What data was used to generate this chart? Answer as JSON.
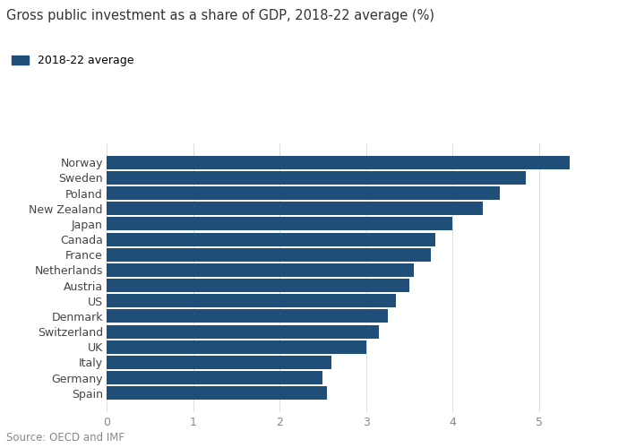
{
  "title": "Gross public investment as a share of GDP, 2018-22 average (%)",
  "legend_label": "2018-22 average",
  "source": "Source: OECD and IMF",
  "bar_color": "#1F4E79",
  "categories": [
    "Spain",
    "Germany",
    "Italy",
    "UK",
    "Switzerland",
    "Denmark",
    "US",
    "Austria",
    "Netherlands",
    "France",
    "Canada",
    "Japan",
    "New Zealand",
    "Poland",
    "Sweden",
    "Norway"
  ],
  "values": [
    2.55,
    2.5,
    2.6,
    3.0,
    3.15,
    3.25,
    3.35,
    3.5,
    3.55,
    3.75,
    3.8,
    4.0,
    4.35,
    4.55,
    4.85,
    5.35
  ],
  "xlim": [
    0,
    5.8
  ],
  "xticks": [
    0,
    1,
    2,
    3,
    4,
    5
  ],
  "background_color": "#FFFFFF",
  "title_fontsize": 10.5,
  "label_fontsize": 9,
  "tick_fontsize": 9,
  "source_fontsize": 8.5,
  "legend_fontsize": 9
}
